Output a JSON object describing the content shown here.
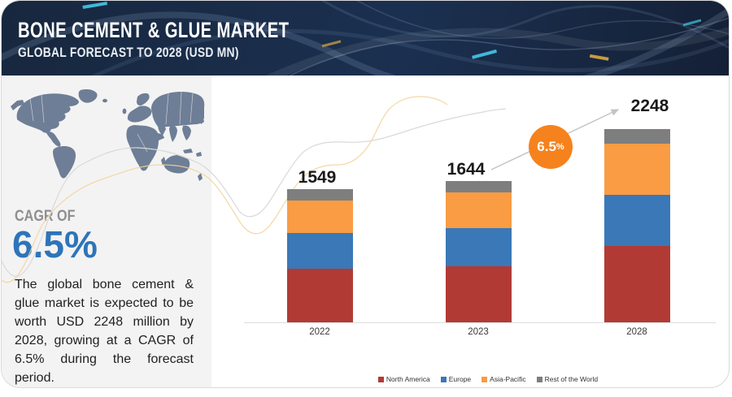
{
  "header": {
    "title": "BONE CEMENT & GLUE MARKET",
    "subtitle": "GLOBAL FORECAST TO 2028 (USD MN)"
  },
  "cagr": {
    "label": "CAGR OF",
    "value": "6.5%"
  },
  "description": "The global bone cement & glue market is expected to be worth USD 2248 million by 2028, growing at a CAGR of 6.5% during the forecast period.",
  "growth_badge": {
    "value": "6.5",
    "unit": "%"
  },
  "chart_data": {
    "type": "bar",
    "stacked": true,
    "categories": [
      "2022",
      "2023",
      "2028"
    ],
    "series": [
      {
        "name": "North America",
        "color": "#b23a34",
        "values": [
          620,
          649,
          891
        ]
      },
      {
        "name": "Europe",
        "color": "#3a78b7",
        "values": [
          416,
          447,
          590
        ]
      },
      {
        "name": "Asia-Pacific",
        "color": "#f99c44",
        "values": [
          382,
          416,
          601
        ]
      },
      {
        "name": "Rest of the World",
        "color": "#7e7e7e",
        "values": [
          131,
          132,
          166
        ]
      }
    ],
    "totals": [
      1549,
      1644,
      2248
    ],
    "legend_position": "bottom",
    "grid": false,
    "ylim": [
      0,
      2248
    ]
  }
}
